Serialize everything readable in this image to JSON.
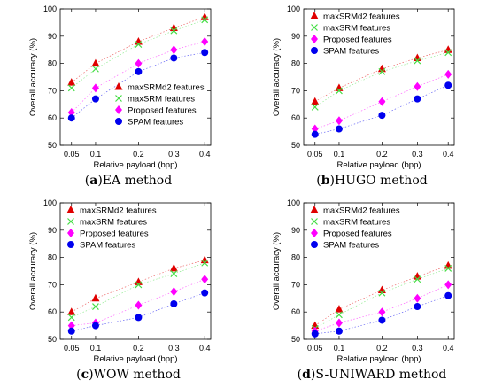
{
  "chart_data": [
    {
      "type": "scatter",
      "panel_letter": "a",
      "caption": "EA method",
      "xlabel": "Relative payload (bpp)",
      "ylabel": "Overall accuracy (%)",
      "x": [
        0.05,
        0.1,
        0.2,
        0.3,
        0.4
      ],
      "x_ticks": [
        "0.05",
        "0.1",
        "0.2",
        "0.3",
        "0.4"
      ],
      "ylim": [
        50,
        100
      ],
      "y_ticks": [
        "50",
        "60",
        "70",
        "80",
        "90",
        "100"
      ],
      "legend_position": "bottom-right",
      "series": [
        {
          "name": "maxSRMd2 features",
          "color": "#e00000",
          "marker": "triangle",
          "values": [
            73,
            80,
            88,
            93,
            97
          ]
        },
        {
          "name": "maxSRM features",
          "color": "#44dd44",
          "marker": "x",
          "values": [
            71,
            78,
            87,
            92,
            96
          ]
        },
        {
          "name": "Proposed features",
          "color": "#ff00ff",
          "marker": "diamond",
          "values": [
            62,
            71,
            80,
            85,
            88
          ]
        },
        {
          "name": "SPAM features",
          "color": "#0000ee",
          "marker": "circle",
          "values": [
            60,
            67,
            77,
            82,
            84
          ]
        }
      ]
    },
    {
      "type": "scatter",
      "panel_letter": "b",
      "caption": "HUGO method",
      "xlabel": "Relative payload (bpp)",
      "ylabel": "Overall accuracy (%)",
      "x": [
        0.05,
        0.1,
        0.2,
        0.3,
        0.4
      ],
      "x_ticks": [
        "0.05",
        "0.1",
        "0.2",
        "0.3",
        "0.4"
      ],
      "ylim": [
        50,
        100
      ],
      "y_ticks": [
        "50",
        "60",
        "70",
        "80",
        "90",
        "100"
      ],
      "legend_position": "top-left",
      "series": [
        {
          "name": "maxSRMd2 features",
          "color": "#e00000",
          "marker": "triangle",
          "values": [
            66,
            71,
            78,
            82,
            85
          ]
        },
        {
          "name": "maxSRM features",
          "color": "#44dd44",
          "marker": "x",
          "values": [
            64,
            70,
            77,
            81,
            84
          ]
        },
        {
          "name": "Proposed features",
          "color": "#ff00ff",
          "marker": "diamond",
          "values": [
            56,
            59,
            66,
            71.5,
            76
          ]
        },
        {
          "name": "SPAM features",
          "color": "#0000ee",
          "marker": "circle",
          "values": [
            54,
            56,
            61,
            67,
            72
          ]
        }
      ]
    },
    {
      "type": "scatter",
      "panel_letter": "c",
      "caption": "WOW method",
      "xlabel": "Relative payload (bpp)",
      "ylabel": "Overall accuracy (%)",
      "x": [
        0.05,
        0.1,
        0.2,
        0.3,
        0.4
      ],
      "x_ticks": [
        "0.05",
        "0.1",
        "0.2",
        "0.3",
        "0.4"
      ],
      "ylim": [
        50,
        100
      ],
      "y_ticks": [
        "50",
        "60",
        "70",
        "80",
        "90",
        "100"
      ],
      "legend_position": "top-left",
      "series": [
        {
          "name": "maxSRMd2 features",
          "color": "#e00000",
          "marker": "triangle",
          "values": [
            60,
            65,
            71,
            76,
            79
          ]
        },
        {
          "name": "maxSRM features",
          "color": "#44dd44",
          "marker": "x",
          "values": [
            58,
            62,
            70,
            74,
            78
          ]
        },
        {
          "name": "Proposed features",
          "color": "#ff00ff",
          "marker": "diamond",
          "values": [
            55,
            56,
            62.5,
            67.5,
            72
          ]
        },
        {
          "name": "SPAM features",
          "color": "#0000ee",
          "marker": "circle",
          "values": [
            53,
            55,
            58,
            63,
            67
          ]
        }
      ]
    },
    {
      "type": "scatter",
      "panel_letter": "d",
      "caption": "S-UNIWARD method",
      "xlabel": "Relative payload (bpp)",
      "ylabel": "Overall accuracy (%)",
      "x": [
        0.05,
        0.1,
        0.2,
        0.3,
        0.4
      ],
      "x_ticks": [
        "0.05",
        "0.1",
        "0.2",
        "0.3",
        "0.4"
      ],
      "ylim": [
        50,
        100
      ],
      "y_ticks": [
        "50",
        "60",
        "70",
        "80",
        "90",
        "100"
      ],
      "legend_position": "top-left",
      "series": [
        {
          "name": "maxSRMd2 features",
          "color": "#e00000",
          "marker": "triangle",
          "values": [
            55,
            61,
            68,
            73,
            77
          ]
        },
        {
          "name": "maxSRM features",
          "color": "#44dd44",
          "marker": "x",
          "values": [
            54,
            59,
            67,
            72,
            76
          ]
        },
        {
          "name": "Proposed features",
          "color": "#ff00ff",
          "marker": "diamond",
          "values": [
            53,
            56,
            60,
            65,
            70
          ]
        },
        {
          "name": "SPAM features",
          "color": "#0000ee",
          "marker": "circle",
          "values": [
            52,
            53,
            57,
            62,
            66
          ]
        }
      ]
    }
  ]
}
